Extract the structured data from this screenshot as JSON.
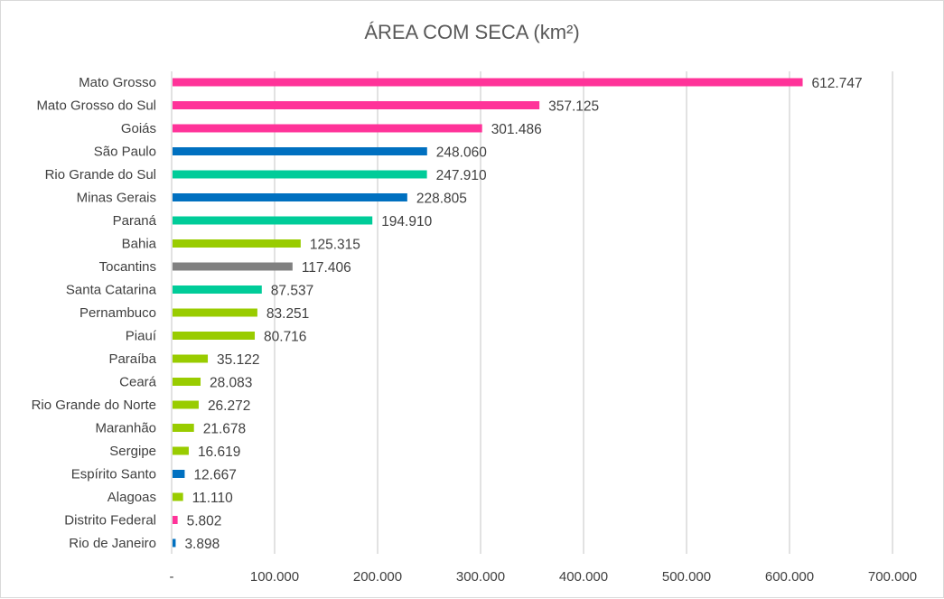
{
  "chart_data": {
    "type": "bar",
    "orientation": "horizontal",
    "title": "ÁREA COM SECA (km²)",
    "categories": [
      "Mato Grosso",
      "Mato Grosso do Sul",
      "Goiás",
      "São Paulo",
      "Rio Grande do Sul",
      "Minas Gerais",
      "Paraná",
      "Bahia",
      "Tocantins",
      "Santa Catarina",
      "Pernambuco",
      "Piauí",
      "Paraíba",
      "Ceará",
      "Rio Grande do Norte",
      "Maranhão",
      "Sergipe",
      "Espírito Santo",
      "Alagoas",
      "Distrito Federal",
      "Rio de Janeiro"
    ],
    "values": [
      612747,
      357125,
      301486,
      248060,
      247910,
      228805,
      194910,
      125315,
      117406,
      87537,
      83251,
      80716,
      35122,
      28083,
      26272,
      21678,
      16619,
      12667,
      11110,
      5802,
      3898
    ],
    "data_labels": [
      "612.747",
      "357.125",
      "301.486",
      "248.060",
      "247.910",
      "228.805",
      "194.910",
      "125.315",
      "117.406",
      "87.537",
      "83.251",
      "80.716",
      "35.122",
      "28.083",
      "26.272",
      "21.678",
      "16.619",
      "12.667",
      "11.110",
      "5.802",
      "3.898"
    ],
    "bar_colors": [
      "#FF3399",
      "#FF3399",
      "#FF3399",
      "#0070C0",
      "#00CC99",
      "#0070C0",
      "#00CC99",
      "#99CC00",
      "#808080",
      "#00CC99",
      "#99CC00",
      "#99CC00",
      "#99CC00",
      "#99CC00",
      "#99CC00",
      "#99CC00",
      "#99CC00",
      "#0070C0",
      "#99CC00",
      "#FF3399",
      "#0070C0"
    ],
    "xlim": [
      0,
      700000
    ],
    "x_ticks": [
      0,
      100000,
      200000,
      300000,
      400000,
      500000,
      600000,
      700000
    ],
    "x_tick_labels": [
      "-",
      "100.000",
      "200.000",
      "300.000",
      "400.000",
      "500.000",
      "600.000",
      "700.000"
    ],
    "grid": "vertical",
    "legend": "none"
  }
}
